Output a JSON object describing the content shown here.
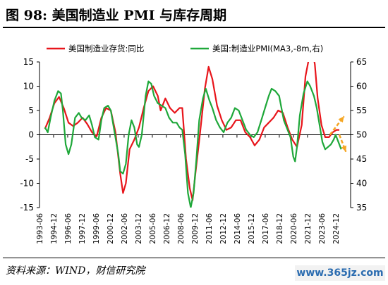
{
  "figure": {
    "title": "图 98:  美国制造业 PMI 与库存周期",
    "source": "资料来源：WIND，财信研究院",
    "watermark": "www.365jz.com"
  },
  "colors": {
    "inventory": "#e8151b",
    "pmi": "#1fa83a",
    "arrow": "#f5a623"
  },
  "chart_data": {
    "type": "line",
    "legend": [
      "美国制造业存货:同比",
      "美国:制造业PMI(MA3,-8m,右)"
    ],
    "legend_position": "top",
    "x_ticks": [
      "1993-06",
      "1994-12",
      "1996-06",
      "1997-12",
      "1999-06",
      "2000-12",
      "2002-06",
      "2003-12",
      "2005-06",
      "2006-12",
      "2008-06",
      "2009-12",
      "2011-06",
      "2012-12",
      "2014-06",
      "2015-12",
      "2017-06",
      "2018-12",
      "2020-06",
      "2021-12",
      "2023-06",
      "2024-12"
    ],
    "x_range": [
      1993.42,
      2026.5
    ],
    "y_left": {
      "range": [
        -15,
        15
      ],
      "ticks": [
        15,
        10,
        5,
        0,
        -5,
        -10,
        -15
      ]
    },
    "y_right": {
      "range": [
        35,
        65
      ],
      "ticks": [
        65,
        60,
        55,
        50,
        45,
        40,
        35
      ]
    },
    "grid": false,
    "series": [
      {
        "name": "美国制造业存货:同比",
        "axis": "left",
        "points": [
          [
            1994.0,
            1.2
          ],
          [
            1994.5,
            3.5
          ],
          [
            1995.0,
            6.5
          ],
          [
            1995.5,
            7.8
          ],
          [
            1996.0,
            5.5
          ],
          [
            1996.5,
            2.5
          ],
          [
            1997.0,
            1.8
          ],
          [
            1997.5,
            2.5
          ],
          [
            1998.0,
            3.5
          ],
          [
            1998.5,
            2.2
          ],
          [
            1999.0,
            0.5
          ],
          [
            1999.5,
            -0.3
          ],
          [
            2000.0,
            3.5
          ],
          [
            2000.5,
            5.5
          ],
          [
            2001.0,
            5.0
          ],
          [
            2001.5,
            0.5
          ],
          [
            2002.0,
            -8.0
          ],
          [
            2002.3,
            -12.0
          ],
          [
            2002.6,
            -10.0
          ],
          [
            2003.0,
            -3.0
          ],
          [
            2003.5,
            -1.0
          ],
          [
            2004.0,
            1.5
          ],
          [
            2004.5,
            5.5
          ],
          [
            2005.0,
            9.0
          ],
          [
            2005.5,
            10.0
          ],
          [
            2006.0,
            8.0
          ],
          [
            2006.3,
            5.0
          ],
          [
            2006.8,
            7.5
          ],
          [
            2007.3,
            5.5
          ],
          [
            2007.8,
            4.5
          ],
          [
            2008.3,
            5.5
          ],
          [
            2008.6,
            5.5
          ],
          [
            2009.0,
            -5.0
          ],
          [
            2009.4,
            -11.0
          ],
          [
            2009.7,
            -13.5
          ],
          [
            2010.0,
            -8.0
          ],
          [
            2010.5,
            0.5
          ],
          [
            2011.0,
            9.5
          ],
          [
            2011.4,
            14.0
          ],
          [
            2011.8,
            11.5
          ],
          [
            2012.3,
            6.0
          ],
          [
            2012.8,
            3.0
          ],
          [
            2013.3,
            1.0
          ],
          [
            2013.8,
            1.5
          ],
          [
            2014.3,
            3.0
          ],
          [
            2014.8,
            3.0
          ],
          [
            2015.3,
            0.5
          ],
          [
            2015.8,
            -0.5
          ],
          [
            2016.3,
            -2.2
          ],
          [
            2016.8,
            -1.0
          ],
          [
            2017.3,
            1.5
          ],
          [
            2017.8,
            2.5
          ],
          [
            2018.3,
            3.5
          ],
          [
            2018.8,
            5.0
          ],
          [
            2019.3,
            4.5
          ],
          [
            2019.8,
            1.5
          ],
          [
            2020.3,
            -1.0
          ],
          [
            2020.8,
            -2.5
          ],
          [
            2021.3,
            2.0
          ],
          [
            2021.7,
            12.0
          ],
          [
            2022.1,
            16.0
          ],
          [
            2022.4,
            18.0
          ],
          [
            2022.7,
            14.5
          ],
          [
            2023.0,
            7.5
          ],
          [
            2023.4,
            2.0
          ],
          [
            2023.8,
            -0.5
          ],
          [
            2024.2,
            -0.5
          ],
          [
            2024.6,
            0.5
          ],
          [
            2025.0,
            1.0
          ],
          [
            2025.3,
            1.0
          ]
        ]
      },
      {
        "name": "美国:制造业PMI(MA3,-8m,右)",
        "axis": "right",
        "points": [
          [
            1994.0,
            51.5
          ],
          [
            1994.3,
            50.5
          ],
          [
            1994.6,
            53.5
          ],
          [
            1995.0,
            57.0
          ],
          [
            1995.4,
            59.0
          ],
          [
            1995.7,
            58.5
          ],
          [
            1995.9,
            55.0
          ],
          [
            1996.2,
            48.0
          ],
          [
            1996.5,
            46.0
          ],
          [
            1996.8,
            48.0
          ],
          [
            1997.2,
            53.5
          ],
          [
            1997.6,
            54.5
          ],
          [
            1997.9,
            53.5
          ],
          [
            1998.3,
            53.0
          ],
          [
            1998.7,
            54.0
          ],
          [
            1999.0,
            52.0
          ],
          [
            1999.3,
            49.5
          ],
          [
            1999.7,
            49.0
          ],
          [
            2000.0,
            53.0
          ],
          [
            2000.3,
            55.5
          ],
          [
            2000.7,
            56.0
          ],
          [
            2001.0,
            55.0
          ],
          [
            2001.4,
            50.5
          ],
          [
            2001.8,
            46.0
          ],
          [
            2002.0,
            42.5
          ],
          [
            2002.3,
            42.0
          ],
          [
            2002.6,
            44.0
          ],
          [
            2002.9,
            50.0
          ],
          [
            2003.2,
            53.0
          ],
          [
            2003.5,
            51.5
          ],
          [
            2003.8,
            48.0
          ],
          [
            2004.0,
            47.5
          ],
          [
            2004.3,
            50.0
          ],
          [
            2004.7,
            58.0
          ],
          [
            2005.0,
            61.0
          ],
          [
            2005.3,
            60.5
          ],
          [
            2005.6,
            58.0
          ],
          [
            2006.0,
            56.5
          ],
          [
            2006.4,
            56.0
          ],
          [
            2006.8,
            55.5
          ],
          [
            2007.2,
            53.5
          ],
          [
            2007.6,
            52.5
          ],
          [
            2008.0,
            52.5
          ],
          [
            2008.3,
            51.5
          ],
          [
            2008.6,
            51.0
          ],
          [
            2008.9,
            46.0
          ],
          [
            2009.2,
            38.0
          ],
          [
            2009.5,
            35.0
          ],
          [
            2009.8,
            38.0
          ],
          [
            2010.1,
            45.0
          ],
          [
            2010.4,
            53.0
          ],
          [
            2010.8,
            57.5
          ],
          [
            2011.1,
            59.5
          ],
          [
            2011.5,
            57.0
          ],
          [
            2011.8,
            55.5
          ],
          [
            2012.2,
            53.0
          ],
          [
            2012.6,
            51.5
          ],
          [
            2013.0,
            50.5
          ],
          [
            2013.4,
            52.5
          ],
          [
            2013.8,
            53.5
          ],
          [
            2014.2,
            55.5
          ],
          [
            2014.6,
            55.0
          ],
          [
            2015.0,
            53.0
          ],
          [
            2015.4,
            51.0
          ],
          [
            2015.8,
            50.0
          ],
          [
            2016.2,
            49.5
          ],
          [
            2016.6,
            50.5
          ],
          [
            2017.0,
            53.0
          ],
          [
            2017.4,
            55.5
          ],
          [
            2017.8,
            58.0
          ],
          [
            2018.1,
            59.5
          ],
          [
            2018.5,
            59.0
          ],
          [
            2018.9,
            58.0
          ],
          [
            2019.1,
            56.0
          ],
          [
            2019.4,
            53.0
          ],
          [
            2019.8,
            51.0
          ],
          [
            2020.1,
            49.5
          ],
          [
            2020.4,
            45.5
          ],
          [
            2020.6,
            44.5
          ],
          [
            2020.8,
            47.5
          ],
          [
            2021.1,
            54.0
          ],
          [
            2021.5,
            58.5
          ],
          [
            2021.9,
            61.0
          ],
          [
            2022.2,
            60.0
          ],
          [
            2022.6,
            58.0
          ],
          [
            2022.9,
            55.5
          ],
          [
            2023.2,
            52.0
          ],
          [
            2023.5,
            48.5
          ],
          [
            2023.8,
            47.0
          ],
          [
            2024.1,
            47.5
          ],
          [
            2024.4,
            48.0
          ],
          [
            2024.7,
            49.0
          ],
          [
            2024.9,
            50.0
          ],
          [
            2025.2,
            48.5
          ],
          [
            2025.5,
            47.0
          ]
        ]
      }
    ],
    "arrows": [
      {
        "from": [
          2024.3,
          50.0
        ],
        "to": [
          2025.8,
          53.8
        ],
        "axis": "right"
      },
      {
        "from": [
          2025.3,
          50.0
        ],
        "to": [
          2026.0,
          46.5
        ],
        "axis": "right"
      }
    ]
  }
}
